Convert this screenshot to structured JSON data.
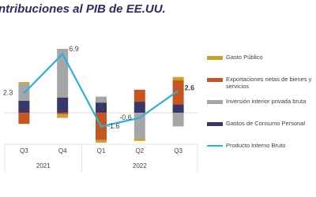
{
  "chart_data": {
    "type": "bar",
    "stacked": true,
    "title": "ntribuciones al PIB de EE.UU.",
    "categories": [
      "Q3",
      "Q4",
      "Q1",
      "Q2",
      "Q3"
    ],
    "category_groups": [
      {
        "label": "2021",
        "count": 2
      },
      {
        "label": "2022",
        "count": 3
      }
    ],
    "ylim": [
      -3.5,
      7.5
    ],
    "series": [
      {
        "name": "Gasto Público",
        "color": "#c9a227",
        "values": [
          0.2,
          -0.4,
          -0.3,
          -0.3,
          0.4
        ]
      },
      {
        "name": "Exportaciones netas de bienes y servicios",
        "color": "#c8551e",
        "values": [
          -1.3,
          -0.2,
          -3.2,
          1.4,
          2.8
        ]
      },
      {
        "name": "Inversión interior privada bruta",
        "color": "#a6a6a6",
        "values": [
          2.0,
          5.7,
          0.7,
          -3.0,
          -1.6
        ]
      },
      {
        "name": "Gastos de Consumo Personal",
        "color": "#3b3668",
        "values": [
          1.4,
          1.8,
          1.2,
          1.3,
          1.0
        ]
      },
      {
        "name": "Producto Interno Bruto",
        "type": "line",
        "color": "#29b0e8",
        "values": [
          2.3,
          6.9,
          -1.6,
          -0.6,
          2.6
        ]
      }
    ]
  }
}
